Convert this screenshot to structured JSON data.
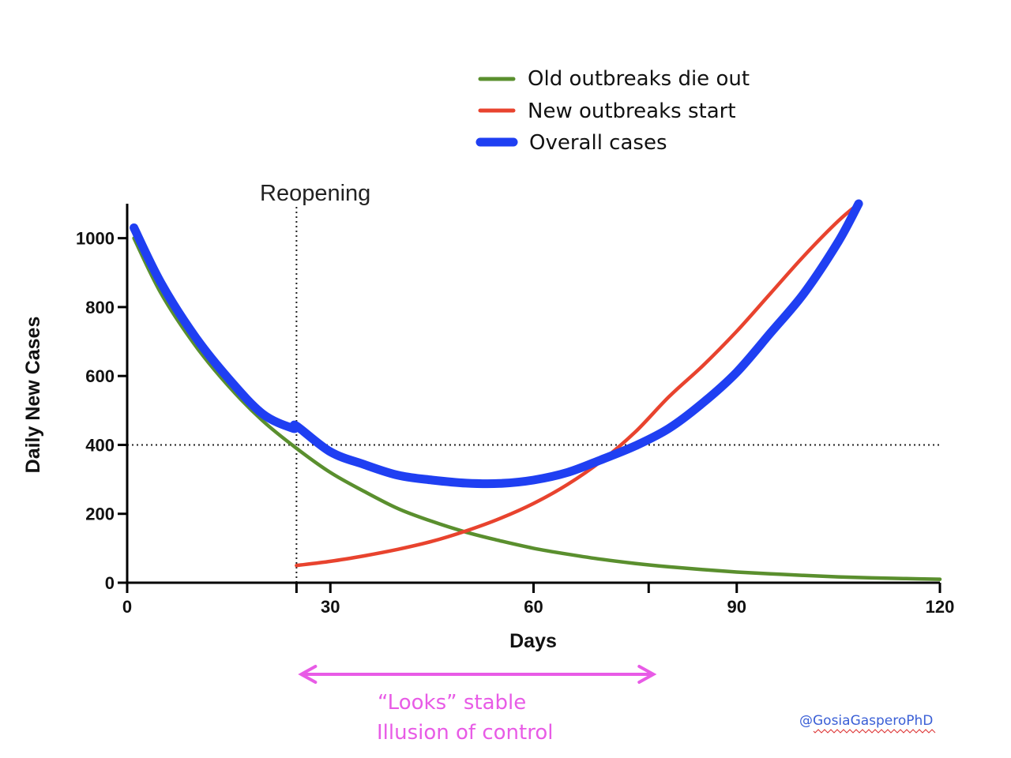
{
  "chart_data": {
    "type": "line",
    "xlabel": "Days",
    "ylabel": "Daily New Cases",
    "xlim": [
      0,
      120
    ],
    "ylim": [
      0,
      1100
    ],
    "xticks": [
      0,
      30,
      60,
      90,
      120
    ],
    "xtick_labels": [
      "0",
      "30",
      "60",
      "90",
      "120"
    ],
    "yticks": [
      0,
      200,
      400,
      600,
      800,
      1000
    ],
    "ytick_labels": [
      "0",
      "200",
      "400",
      "600",
      "800",
      "1000"
    ],
    "grid": false,
    "legend_position": "top-right",
    "series": [
      {
        "name": "Old outbreaks die out",
        "color": "#5a8f2e",
        "x": [
          1,
          5,
          10,
          15,
          20,
          25,
          30,
          35,
          40,
          45,
          50,
          55,
          60,
          65,
          70,
          75,
          80,
          85,
          90,
          95,
          100,
          105,
          110,
          115,
          120
        ],
        "y": [
          1000,
          840,
          690,
          570,
          470,
          390,
          320,
          265,
          215,
          178,
          147,
          122,
          100,
          83,
          68,
          56,
          46,
          38,
          31,
          26,
          21,
          17,
          14,
          12,
          10
        ]
      },
      {
        "name": "New outbreaks start",
        "color": "#e8432e",
        "x": [
          25,
          30,
          35,
          40,
          45,
          50,
          55,
          60,
          65,
          70,
          75,
          80,
          85,
          90,
          95,
          100,
          105,
          108
        ],
        "y": [
          50,
          62,
          78,
          97,
          120,
          150,
          186,
          230,
          285,
          353,
          437,
          540,
          630,
          730,
          840,
          950,
          1050,
          1100
        ]
      },
      {
        "name": "Overall cases",
        "color": "#1f3ff2",
        "x": [
          1,
          5,
          10,
          15,
          20,
          24.5,
          25,
          30,
          35,
          40,
          45,
          50,
          55,
          60,
          65,
          70,
          75,
          80,
          85,
          90,
          95,
          100,
          105,
          108
        ],
        "y": [
          1030,
          870,
          715,
          592,
          490,
          448,
          455,
          380,
          343,
          312,
          298,
          289,
          288,
          298,
          320,
          357,
          397,
          448,
          522,
          611,
          725,
          842,
          990,
          1100
        ]
      }
    ],
    "reference_lines": {
      "vertical_x": 25,
      "vertical_label": "Reopening",
      "horizontal_y": 400
    },
    "annotation": {
      "color": "#e85be6",
      "arrow_from_x": 25,
      "arrow_to_x": 77,
      "line1": "“Looks” stable",
      "line2": "Illusion of control"
    }
  },
  "credit": {
    "text": "@GosiaGasperoPhD",
    "color": "#3a5fd6"
  }
}
